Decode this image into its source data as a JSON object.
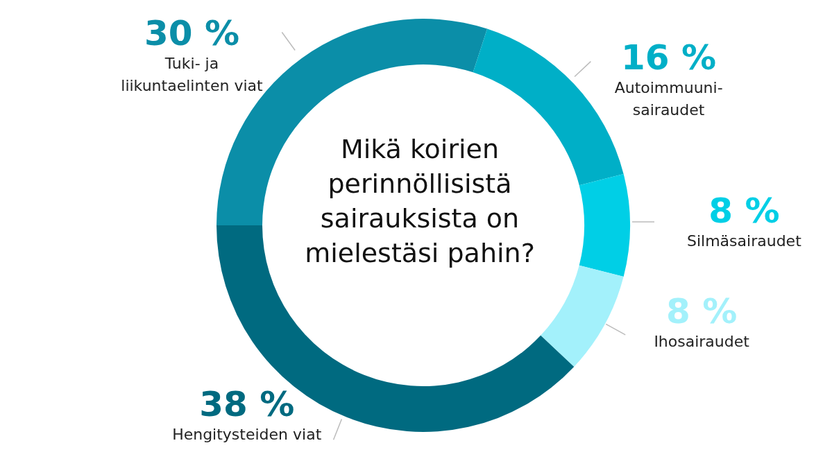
{
  "chart_data": {
    "type": "donut",
    "title": "Mikä koirien perinnöllisistä sairauksista on mielestäsi pahin?",
    "categories": [
      "Tuki- ja\nliikuntaelinten viat",
      "Autoimmuuni-\nsairaudet",
      "Silmäsairaudet",
      "Ihosairaudet",
      "Hengitysteiden viat"
    ],
    "values": [
      30,
      16,
      8,
      8,
      38
    ],
    "value_labels": [
      "30 %",
      "16 %",
      "8 %",
      "8 %",
      "38 %"
    ],
    "colors": [
      "#0b8ea8",
      "#00afc7",
      "#00cfe6",
      "#a3f1fb",
      "#006a80"
    ]
  }
}
